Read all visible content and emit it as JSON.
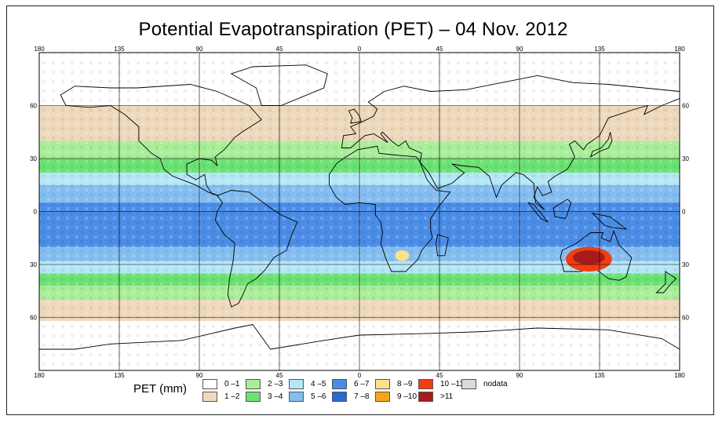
{
  "title": "Potential Evapotranspiration (PET) – 04 Nov. 2012",
  "legend": {
    "title": "PET (mm)",
    "classes": [
      {
        "label": "0 –1",
        "color": "#ffffff"
      },
      {
        "label": "1 –2",
        "color": "#eed9bd"
      },
      {
        "label": "2 –3",
        "color": "#a9ee99"
      },
      {
        "label": "3 –4",
        "color": "#6be173"
      },
      {
        "label": "4 –5",
        "color": "#b6e7f7"
      },
      {
        "label": "5 –6",
        "color": "#84bdf0"
      },
      {
        "label": "6 –7",
        "color": "#4a8ce6"
      },
      {
        "label": "7 –8",
        "color": "#2668d8"
      },
      {
        "label": "8 –9",
        "color": "#fde08a"
      },
      {
        "label": "9 –10",
        "color": "#f9a21c"
      },
      {
        "label": "10 –11",
        "color": "#f13e10"
      },
      {
        "label": ">11",
        "color": "#a61c1c"
      },
      {
        "label": "nodata",
        "color": "#d9d9d9"
      }
    ]
  },
  "axes": {
    "lon_labels": [
      "180",
      "135",
      "90",
      "45",
      "0",
      "45",
      "90",
      "135",
      "180"
    ],
    "lat_labels_left": [
      "60",
      "30",
      "0",
      "30",
      "60"
    ],
    "lat_labels_right": [
      "60",
      "30",
      "0",
      "30",
      "60"
    ]
  },
  "chart_data": {
    "type": "heatmap",
    "variable": "Potential Evapotranspiration (PET)",
    "unit": "mm",
    "date": "04 Nov. 2012",
    "lon_range": [
      -180,
      180
    ],
    "lat_range": [
      -90,
      90
    ],
    "gridlines_lon": [
      -180,
      -135,
      -90,
      -45,
      0,
      45,
      90,
      135,
      180
    ],
    "gridlines_lat": [
      -60,
      -30,
      0,
      30,
      60
    ],
    "bands": [
      {
        "class": "0 –1",
        "lat_range": [
          60,
          90
        ]
      },
      {
        "class": "1 –2",
        "lat_range": [
          40,
          60
        ]
      },
      {
        "class": "2 –3",
        "lat_range": [
          30,
          40
        ]
      },
      {
        "class": "3 –4",
        "lat_range": [
          22,
          30
        ]
      },
      {
        "class": "4 –5",
        "lat_range": [
          15,
          22
        ]
      },
      {
        "class": "5 –6",
        "lat_range": [
          5,
          15
        ]
      },
      {
        "class": "6 –7",
        "lat_range": [
          -20,
          5
        ]
      },
      {
        "class": "5 –6",
        "lat_range": [
          -28,
          -20
        ]
      },
      {
        "class": "4 –5",
        "lat_range": [
          -35,
          -28
        ]
      },
      {
        "class": "3 –4",
        "lat_range": [
          -42,
          -35
        ]
      },
      {
        "class": "2 –3",
        "lat_range": [
          -50,
          -42
        ]
      },
      {
        "class": "1 –2",
        "lat_range": [
          -62,
          -50
        ]
      },
      {
        "class": "0 –1",
        "lat_range": [
          -90,
          -62
        ]
      }
    ],
    "hotspots": [
      {
        "region": "Australia interior",
        "lon": [
          116,
          142
        ],
        "lat": [
          -34,
          -20
        ],
        "class": "10 –11"
      },
      {
        "region": "Australia core",
        "lon": [
          120,
          138
        ],
        "lat": [
          -30,
          -22
        ],
        "class": ">11"
      },
      {
        "region": "Southern Africa",
        "lon": [
          20,
          28
        ],
        "lat": [
          -28,
          -22
        ],
        "class": "8 –9"
      }
    ]
  }
}
